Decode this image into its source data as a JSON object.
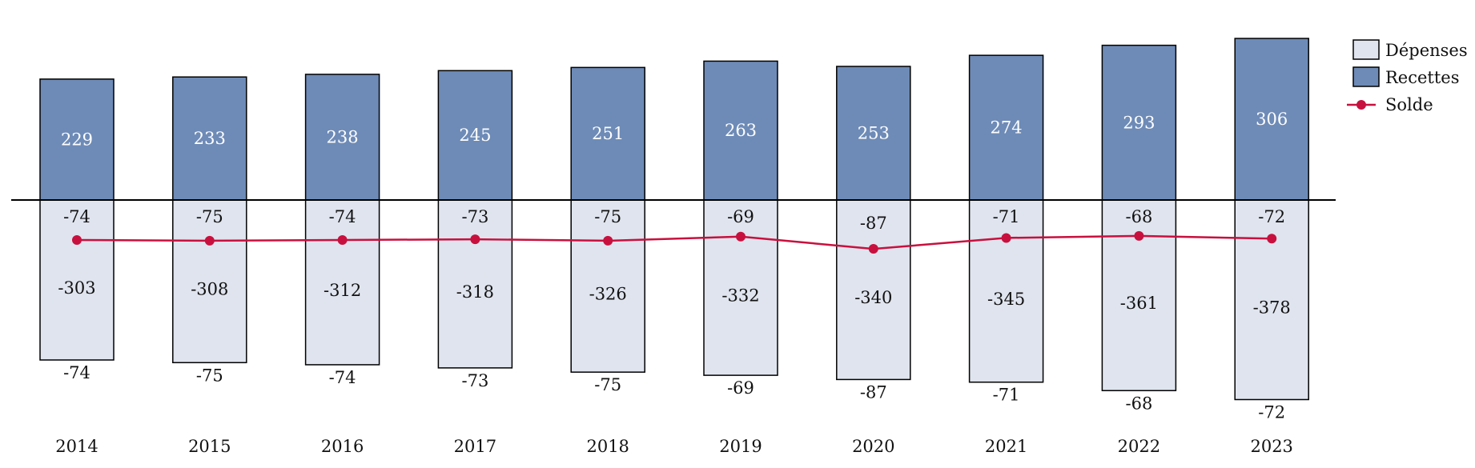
{
  "chart_data": {
    "type": "bar",
    "categories": [
      "2014",
      "2015",
      "2016",
      "2017",
      "2018",
      "2019",
      "2020",
      "2021",
      "2022",
      "2023"
    ],
    "series": [
      {
        "name": "Dépenses",
        "values": [
          -303,
          -308,
          -312,
          -318,
          -326,
          -332,
          -340,
          -345,
          -361,
          -378
        ],
        "color": "#dfe4ee"
      },
      {
        "name": "Recettes",
        "values": [
          229,
          233,
          238,
          245,
          251,
          263,
          253,
          274,
          293,
          306
        ],
        "color": "#6e8bb7"
      },
      {
        "name": "Solde",
        "values": [
          -74,
          -75,
          -74,
          -73,
          -75,
          -69,
          -87,
          -71,
          -68,
          -72
        ],
        "color": "#c8103e"
      }
    ],
    "depense_labels": [
      "-303",
      "-308",
      "-312",
      "-318",
      "-326",
      "-332",
      "-340",
      "-345",
      "-361",
      "-378"
    ],
    "recette_labels": [
      "229",
      "233",
      "238",
      "245",
      "251",
      "263",
      "253",
      "274",
      "293",
      "306"
    ],
    "solde_labels": [
      "-74",
      "-75",
      "-74",
      "-73",
      "-75",
      "-69",
      "-87",
      "-71",
      "-68",
      "-72"
    ],
    "legend": [
      "Dépenses",
      "Recettes",
      "Solde"
    ],
    "legend_position": "top-right",
    "title": "",
    "xlabel": "",
    "ylabel": "",
    "ylim": [
      -400,
      330
    ],
    "grid": false
  }
}
